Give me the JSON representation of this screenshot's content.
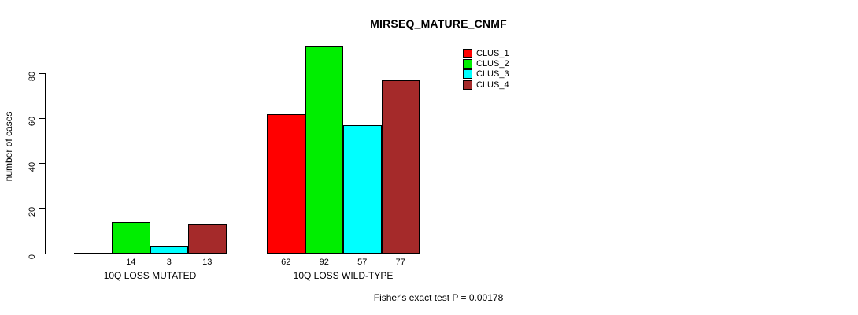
{
  "chart_data": {
    "type": "bar",
    "title": "MIRSEQ_MATURE_CNMF",
    "ylabel": "number of cases",
    "xlabel": "",
    "categories": [
      "10Q LOSS MUTATED",
      "10Q LOSS WILD-TYPE"
    ],
    "series": [
      {
        "name": "CLUS_1",
        "color": "#ff0000",
        "values": [
          0,
          62
        ]
      },
      {
        "name": "CLUS_2",
        "color": "#00ee00",
        "values": [
          14,
          92
        ]
      },
      {
        "name": "CLUS_3",
        "color": "#00ffff",
        "values": [
          3,
          57
        ]
      },
      {
        "name": "CLUS_4",
        "color": "#a52a2a",
        "values": [
          13,
          77
        ]
      }
    ],
    "yticks": [
      0,
      20,
      40,
      60,
      80
    ],
    "ylim": [
      0,
      96.8
    ],
    "grid": false,
    "legend_position": "top-right",
    "bar_labels_shown": true,
    "zero_bar_label_hidden": true,
    "annotation": "Fisher's exact test P = 0.00178"
  }
}
